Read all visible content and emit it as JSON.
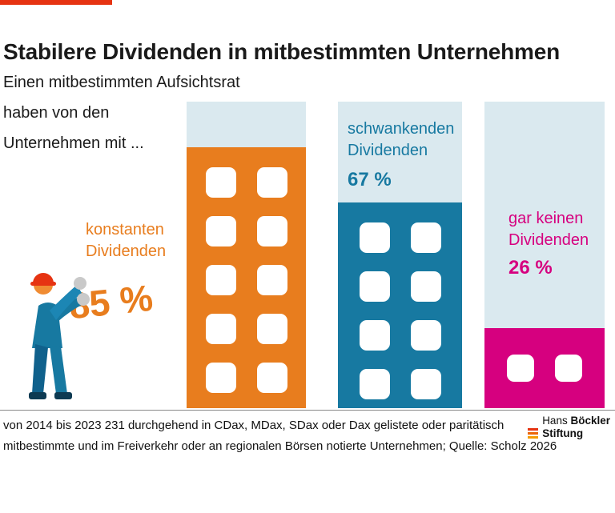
{
  "accent": {
    "top_line_color": "#e63312"
  },
  "header": {
    "title": "Stabilere Dividenden in mitbestimmten Unternehmen",
    "intro_lines": [
      "Einen mitbestimmten Aufsichtsrat",
      "haben von den",
      "Unternehmen mit  ..."
    ]
  },
  "chart_data": {
    "type": "bar",
    "title": "Stabilere Dividenden in mitbestimmten Unternehmen",
    "unit": "%",
    "categories": [
      "konstanten Dividenden",
      "schwankenden Dividenden",
      "gar keinen Dividenden"
    ],
    "category_labels": [
      "konstanten\nDividenden",
      "schwankenden\nDividenden",
      "gar keinen\nDividenden"
    ],
    "values": [
      85,
      67,
      26
    ],
    "value_labels": [
      "85 %",
      "67 %",
      "26 %"
    ],
    "ylim": [
      0,
      100
    ],
    "colors": [
      "#e87d1e",
      "#1779a1",
      "#d6007f"
    ],
    "background_color": "#dae9ef",
    "window_rows": [
      5,
      4,
      1
    ],
    "legend": "none",
    "grid": false
  },
  "footer": {
    "note_line1": "von 2014 bis 2023 231 durchgehend in CDax, MDax, SDax oder Dax gelistete oder paritätisch",
    "note_line2": "mitbestimmte und im Freiverkehr oder an regionalen Börsen notierte Unternehmen; Quelle: Scholz 2026",
    "logo": {
      "name_regular": "Hans ",
      "name_bold": "Böckler",
      "line2": "Stiftung",
      "stripe_colors": [
        "#e63312",
        "#ec6608",
        "#f59b00"
      ]
    }
  }
}
